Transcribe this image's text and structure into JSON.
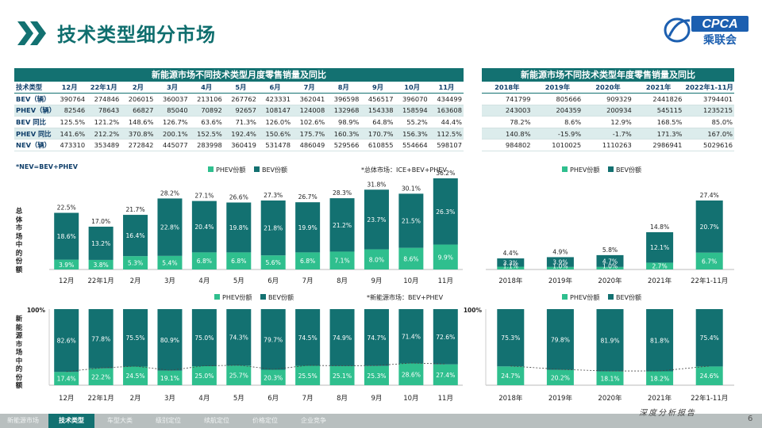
{
  "header": {
    "title": "技术类型细分市场",
    "logo_text": "CPCA",
    "logo_cn": "乘联会"
  },
  "monthly_table": {
    "title": "新能源市场不同技术类型月度零售销量及同比",
    "corner": "技术类型",
    "columns": [
      "12月",
      "22年1月",
      "2月",
      "3月",
      "4月",
      "5月",
      "6月",
      "7月",
      "8月",
      "9月",
      "10月",
      "11月"
    ],
    "rows": [
      {
        "label": "BEV（辆）",
        "values": [
          "390764",
          "274846",
          "206015",
          "360037",
          "213106",
          "267762",
          "423331",
          "362041",
          "396598",
          "456517",
          "396070",
          "434499"
        ],
        "highlight": false
      },
      {
        "label": "PHEV（辆）",
        "values": [
          "82546",
          "78643",
          "66827",
          "85040",
          "70892",
          "92657",
          "108147",
          "124008",
          "132968",
          "154338",
          "158594",
          "163608"
        ],
        "highlight": true
      },
      {
        "label": "BEV 同比",
        "values": [
          "125.5%",
          "121.2%",
          "148.6%",
          "126.7%",
          "63.6%",
          "71.3%",
          "126.0%",
          "102.6%",
          "98.9%",
          "64.8%",
          "55.2%",
          "44.4%"
        ],
        "highlight": false
      },
      {
        "label": "PHEV 同比",
        "values": [
          "141.6%",
          "212.2%",
          "370.8%",
          "200.1%",
          "152.5%",
          "192.4%",
          "150.6%",
          "175.7%",
          "160.3%",
          "170.7%",
          "156.3%",
          "112.5%"
        ],
        "highlight": true
      },
      {
        "label": "NEV（辆）",
        "values": [
          "473310",
          "353489",
          "272842",
          "445077",
          "283998",
          "360419",
          "531478",
          "486049",
          "529566",
          "610855",
          "554664",
          "598107"
        ],
        "highlight": false
      }
    ]
  },
  "annual_table": {
    "title": "新能源市场不同技术类型年度零售销量及同比",
    "columns": [
      "2018年",
      "2019年",
      "2020年",
      "2021年",
      "2022年1-11月"
    ],
    "rows": [
      {
        "values": [
          "741799",
          "805666",
          "909329",
          "2441826",
          "3794401"
        ],
        "highlight": false
      },
      {
        "values": [
          "243003",
          "204359",
          "200934",
          "545115",
          "1235215"
        ],
        "highlight": true
      },
      {
        "values": [
          "78.2%",
          "8.6%",
          "12.9%",
          "168.5%",
          "85.0%"
        ],
        "highlight": false
      },
      {
        "values": [
          "140.8%",
          "-15.9%",
          "-1.7%",
          "171.3%",
          "167.0%"
        ],
        "highlight": true
      },
      {
        "values": [
          "984802",
          "1010025",
          "1110263",
          "2986941",
          "5029616"
        ],
        "highlight": false
      }
    ]
  },
  "notes": {
    "nev_def": "*NEV=BEV+PHEV"
  },
  "side_labels": {
    "top": "总体市场中的份额",
    "bottom": "新能源市场中的份额"
  },
  "colors": {
    "bev": "#137171",
    "phev": "#2fbf8e",
    "total_line": "#444444",
    "teal_dark": "#137171"
  },
  "chart_data": [
    {
      "id": "overall_monthly",
      "type": "bar",
      "stacked": true,
      "note": "*总体市场：ICE+BEV+PHEV",
      "legend": [
        "PHEV份额",
        "BEV份额"
      ],
      "categories": [
        "12月",
        "22年1月",
        "2月",
        "3月",
        "4月",
        "5月",
        "6月",
        "7月",
        "8月",
        "9月",
        "10月",
        "11月"
      ],
      "series": [
        {
          "name": "PHEV份额",
          "values": [
            3.9,
            3.8,
            5.3,
            5.4,
            6.8,
            6.8,
            5.6,
            6.8,
            7.1,
            8.0,
            8.6,
            9.9
          ],
          "labels": [
            "3.9%",
            "3.8%",
            "5.3%",
            "5.4%",
            "6.8%",
            "6.8%",
            "5.6%",
            "6.8%",
            "7.1%",
            "8.0%",
            "8.6%",
            "9.9%"
          ]
        },
        {
          "name": "BEV份额",
          "values": [
            18.6,
            13.2,
            16.4,
            22.8,
            20.4,
            19.8,
            21.8,
            19.9,
            21.2,
            23.7,
            21.5,
            26.3
          ],
          "labels": [
            "18.6%",
            "13.2%",
            "16.4%",
            "22.8%",
            "20.4%",
            "19.8%",
            "21.8%",
            "19.9%",
            "21.2%",
            "23.7%",
            "21.5%",
            "26.3%"
          ]
        }
      ],
      "totals": [
        "22.5%",
        "17.0%",
        "21.7%",
        "28.2%",
        "27.1%",
        "26.6%",
        "27.3%",
        "26.7%",
        "28.3%",
        "31.8%",
        "30.1%",
        "36.2%"
      ],
      "ylim": [
        0,
        36.2
      ]
    },
    {
      "id": "overall_annual",
      "type": "bar",
      "stacked": true,
      "legend": [
        "PHEV份额",
        "BEV份额"
      ],
      "categories": [
        "2018年",
        "2019年",
        "2020年",
        "2021年",
        "22年1-11月"
      ],
      "series": [
        {
          "name": "PHEV份额",
          "values": [
            1.1,
            1.0,
            1.0,
            2.7,
            6.7
          ],
          "labels": [
            "1.1%",
            "1.0%",
            "1.0%",
            "2.7%",
            "6.7%"
          ]
        },
        {
          "name": "BEV份额",
          "values": [
            3.3,
            3.9,
            4.7,
            12.1,
            20.7
          ],
          "labels": [
            "3.3%",
            "3.9%",
            "4.7%",
            "12.1%",
            "20.7%"
          ]
        }
      ],
      "totals": [
        "4.4%",
        "4.9%",
        "5.8%",
        "14.8%",
        "27.4%"
      ],
      "ylim": [
        0,
        36.2
      ]
    },
    {
      "id": "nev_monthly",
      "type": "bar",
      "stacked": true,
      "note": "*新能源市场：BEV+PHEV",
      "legend": [
        "PHEV份额",
        "BEV份额"
      ],
      "y_top_label": "100%",
      "categories": [
        "12月",
        "22年1月",
        "2月",
        "3月",
        "4月",
        "5月",
        "6月",
        "7月",
        "8月",
        "9月",
        "10月",
        "11月"
      ],
      "series": [
        {
          "name": "PHEV份额",
          "values": [
            17.4,
            22.2,
            24.5,
            19.1,
            25.0,
            25.7,
            20.3,
            25.5,
            25.1,
            25.3,
            28.6,
            27.4
          ],
          "labels": [
            "17.4%",
            "22.2%",
            "24.5%",
            "19.1%",
            "25.0%",
            "25.7%",
            "20.3%",
            "25.5%",
            "25.1%",
            "25.3%",
            "28.6%",
            "27.4%"
          ]
        },
        {
          "name": "BEV份额",
          "values": [
            82.6,
            77.8,
            75.5,
            80.9,
            75.0,
            74.3,
            79.7,
            74.5,
            74.9,
            74.7,
            71.4,
            72.6
          ],
          "labels": [
            "82.6%",
            "77.8%",
            "75.5%",
            "80.9%",
            "75.0%",
            "74.3%",
            "79.7%",
            "74.5%",
            "74.9%",
            "74.7%",
            "71.4%",
            "72.6%"
          ]
        }
      ],
      "ylim": [
        0,
        100
      ]
    },
    {
      "id": "nev_annual",
      "type": "bar",
      "stacked": true,
      "legend": [
        "PHEV份额",
        "BEV份额"
      ],
      "y_top_label": "100%",
      "categories": [
        "2018年",
        "2019年",
        "2020年",
        "2021年",
        "22年1-11月"
      ],
      "series": [
        {
          "name": "PHEV份额",
          "values": [
            24.7,
            20.2,
            18.1,
            18.2,
            24.6
          ],
          "labels": [
            "24.7%",
            "20.2%",
            "18.1%",
            "18.2%",
            "24.6%"
          ]
        },
        {
          "name": "BEV份额",
          "values": [
            75.3,
            79.8,
            81.9,
            81.8,
            75.4
          ],
          "labels": [
            "75.3%",
            "79.8%",
            "81.9%",
            "81.8%",
            "75.4%"
          ]
        }
      ],
      "ylim": [
        0,
        100
      ]
    }
  ],
  "footer": {
    "tabs": [
      {
        "label": "新能源市场",
        "active": false
      },
      {
        "label": "技术类型",
        "active": true
      },
      {
        "label": "车型大类",
        "active": false
      },
      {
        "label": "级别定位",
        "active": false
      },
      {
        "label": "续航定位",
        "active": false
      },
      {
        "label": "价格定位",
        "active": false
      },
      {
        "label": "企业竞争",
        "active": false
      }
    ],
    "tagline": "深度分析报告",
    "page": "6"
  }
}
